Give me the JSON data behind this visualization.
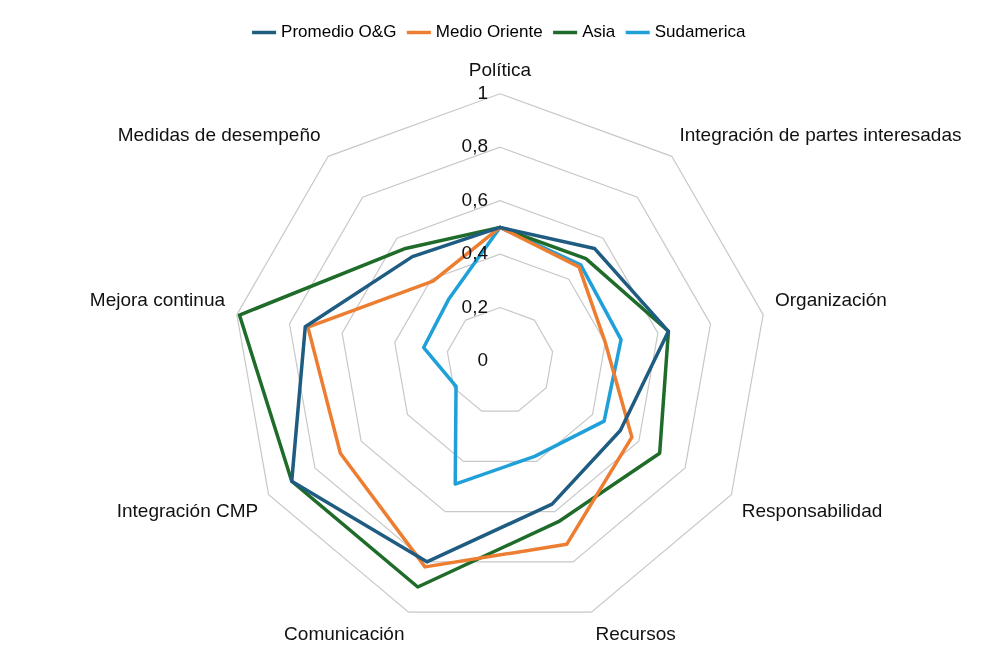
{
  "chart_data": {
    "type": "radar",
    "categories": [
      "Política",
      "Integración de partes interesadas",
      "Organización",
      "Responsabilidad",
      "Recursos",
      "Comunicación",
      "Integración CMP",
      "Mejora continua",
      "Medidas de desempeño"
    ],
    "series": [
      {
        "name": "Promedio O&G",
        "color": "#1f5c82",
        "values": [
          0.5,
          0.55,
          0.64,
          0.52,
          0.57,
          0.8,
          0.9,
          0.74,
          0.51
        ]
      },
      {
        "name": "Medio Oriente",
        "color": "#ed7d31",
        "values": [
          0.5,
          0.46,
          0.4,
          0.57,
          0.73,
          0.82,
          0.69,
          0.73,
          0.39
        ]
      },
      {
        "name": "Asia",
        "color": "#1e6b2a",
        "values": [
          0.5,
          0.5,
          0.64,
          0.69,
          0.64,
          0.9,
          0.9,
          0.99,
          0.55
        ]
      },
      {
        "name": "Sudamerica",
        "color": "#1fa0d8",
        "values": [
          0.5,
          0.47,
          0.46,
          0.45,
          0.38,
          0.49,
          0.19,
          0.29,
          0.3
        ]
      }
    ],
    "ylim": [
      0,
      1
    ],
    "yticks": [
      0,
      {
        "value": 0.2,
        "label": "0,2"
      },
      {
        "value": 0.4,
        "label": "0,4"
      },
      {
        "value": 0.6,
        "label": "0,6"
      },
      {
        "value": 0.8,
        "label": "0,8"
      },
      1
    ],
    "grid": true,
    "legend": "top",
    "marker": "none",
    "line_style": "solid"
  }
}
